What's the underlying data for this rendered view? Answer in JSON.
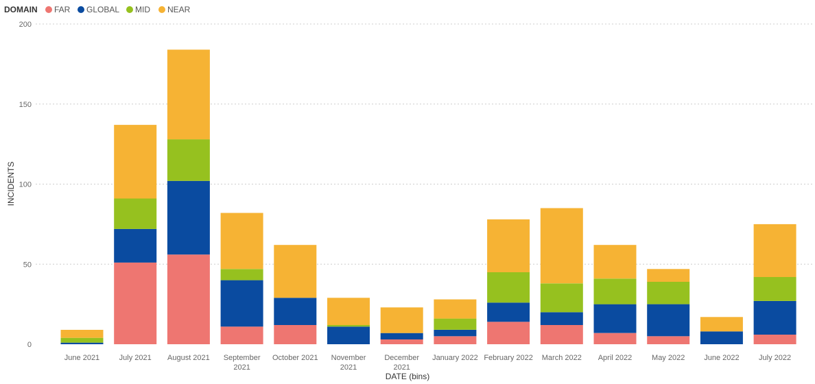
{
  "chart_data": {
    "type": "bar",
    "stacked": true,
    "legend": {
      "title": "DOMAIN",
      "placement": "top-left",
      "entries": [
        "FAR",
        "GLOBAL",
        "MID",
        "NEAR"
      ]
    },
    "xlabel": "DATE (bins)",
    "ylabel": "INCIDENTS",
    "ylim": [
      0,
      200
    ],
    "yticks": [
      "0",
      "50",
      "100",
      "150",
      "200"
    ],
    "grid": true,
    "categories": [
      [
        "June 2021"
      ],
      [
        "July 2021"
      ],
      [
        "August 2021"
      ],
      [
        "September",
        "2021"
      ],
      [
        "October 2021"
      ],
      [
        "November",
        "2021"
      ],
      [
        "December",
        "2021"
      ],
      [
        "January 2022"
      ],
      [
        "February 2022"
      ],
      [
        "March 2022"
      ],
      [
        "April 2022"
      ],
      [
        "May 2022"
      ],
      [
        "June 2022"
      ],
      [
        "July 2022"
      ]
    ],
    "series": [
      {
        "name": "FAR",
        "color": "#EE7671",
        "values": [
          0,
          51,
          56,
          11,
          12,
          0,
          3,
          5,
          14,
          12,
          7,
          5,
          0,
          6
        ]
      },
      {
        "name": "GLOBAL",
        "color": "#0A4BA0",
        "values": [
          1,
          21,
          46,
          29,
          17,
          11,
          4,
          4,
          12,
          8,
          18,
          20,
          8,
          21
        ]
      },
      {
        "name": "MID",
        "color": "#96C11F",
        "values": [
          3,
          19,
          26,
          7,
          0,
          1,
          0,
          7,
          19,
          18,
          16,
          14,
          0,
          15
        ]
      },
      {
        "name": "NEAR",
        "color": "#F6B334",
        "values": [
          5,
          46,
          56,
          35,
          33,
          17,
          16,
          12,
          33,
          47,
          21,
          8,
          9,
          33
        ]
      }
    ]
  }
}
